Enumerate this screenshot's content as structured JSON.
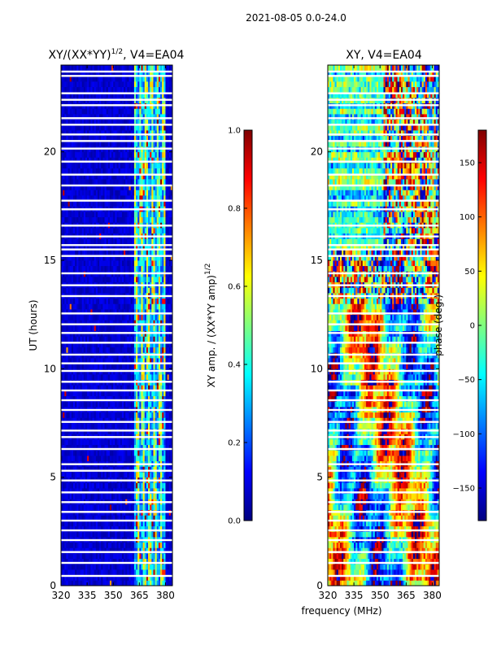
{
  "suptitle": "2021-08-05 0.0-24.0",
  "colors": {
    "jet": [
      "#00007f",
      "#0000ff",
      "#007fff",
      "#00ffff",
      "#7fff7f",
      "#ffff00",
      "#ff7f00",
      "#ff0000",
      "#7f0000"
    ],
    "gap": "#ffffff",
    "frame": "#000000"
  },
  "chart_data": [
    {
      "type": "heatmap",
      "name": "amplitude",
      "title_main": "XY/(XX*YY)",
      "title_sup": "1/2",
      "title_rest": ", V4=EA04",
      "xlabel": "",
      "ylabel": "UT (hours)",
      "xlim": [
        320,
        384
      ],
      "ylim": [
        0,
        24
      ],
      "xticks": [
        320,
        335,
        350,
        365,
        380
      ],
      "yticks": [
        0,
        5,
        10,
        15,
        20
      ],
      "ncols": 64,
      "nrows": 96,
      "rfi_band": [
        362,
        380
      ],
      "value_range": [
        0.0,
        1.0
      ],
      "colorbar": {
        "label_main": "XY amp. / (XX*YY amp)",
        "label_sup": "1/2",
        "ticks": [
          "0.0",
          "0.2",
          "0.4",
          "0.6",
          "0.8",
          "1.0"
        ],
        "tick_values": [
          0.0,
          0.2,
          0.4,
          0.6,
          0.8,
          1.0
        ],
        "range": [
          0.0,
          1.0
        ]
      }
    },
    {
      "type": "heatmap",
      "name": "phase",
      "title_main": "XY, V4=EA04",
      "xlabel": "frequency (MHz)",
      "ylabel": "",
      "xlim": [
        320,
        384
      ],
      "ylim": [
        0,
        24
      ],
      "xticks": [
        320,
        335,
        350,
        365,
        380
      ],
      "yticks": [
        0,
        5,
        10,
        15,
        20
      ],
      "ncols": 64,
      "nrows": 96,
      "value_range": [
        -180,
        180
      ],
      "colorbar": {
        "label_main": "phase (deg.)",
        "ticks": [
          "150",
          "100",
          "50",
          "0",
          "−50",
          "−100",
          "−150"
        ],
        "tick_values": [
          150,
          100,
          50,
          0,
          -50,
          -100,
          -150
        ],
        "range": [
          -180,
          180
        ]
      }
    }
  ],
  "gap_rows_hours": [
    0.45,
    1.05,
    1.55,
    2.1,
    2.55,
    3.0,
    3.4,
    3.85,
    4.3,
    4.85,
    5.3,
    5.6,
    6.3,
    6.85,
    7.15,
    7.55,
    8.1,
    8.55,
    9.0,
    9.4,
    9.9,
    10.25,
    10.65,
    11.2,
    11.65,
    12.05,
    12.55,
    13.35,
    13.85,
    14.4,
    15.2,
    15.5,
    15.7,
    16.1,
    16.6,
    17.35,
    17.75,
    18.45,
    18.95,
    19.55,
    20.15,
    20.5,
    20.8,
    21.25,
    21.55,
    22.15,
    22.4,
    22.7,
    23.5,
    23.7
  ]
}
